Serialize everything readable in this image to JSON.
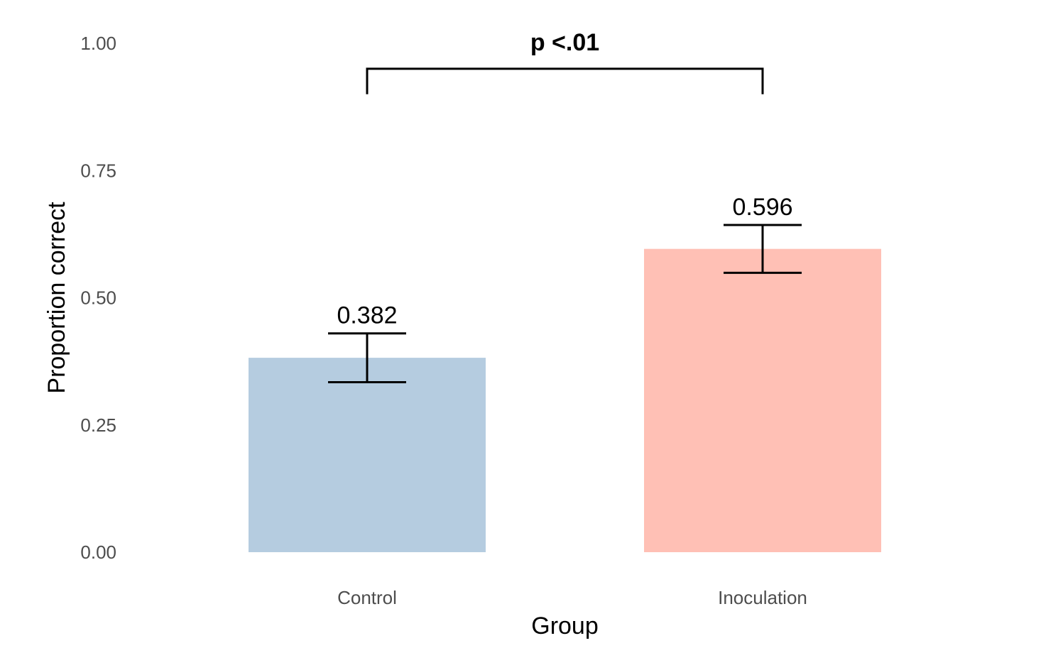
{
  "chart_data": {
    "type": "bar",
    "title": "",
    "xlabel": "Group",
    "ylabel": "Proportion correct",
    "ylim": [
      0,
      1
    ],
    "yticks": [
      0,
      0.25,
      0.5,
      0.75,
      1
    ],
    "ytick_labels": [
      "0.00",
      "0.25",
      "0.50",
      "0.75",
      "1.00"
    ],
    "grid": false,
    "categories": [
      "Control",
      "Inoculation"
    ],
    "values": [
      0.382,
      0.596
    ],
    "value_labels": [
      "0.382",
      "0.596"
    ],
    "error_bars": [
      {
        "lower": 0.334,
        "upper": 0.43
      },
      {
        "lower": 0.549,
        "upper": 0.643
      }
    ],
    "colors": [
      "#b5cce0",
      "#ffc0b5"
    ],
    "annotation": {
      "text": "p <.01",
      "from": "Control",
      "to": "Inoculation",
      "y": 0.95,
      "tip_y": 0.9
    }
  }
}
